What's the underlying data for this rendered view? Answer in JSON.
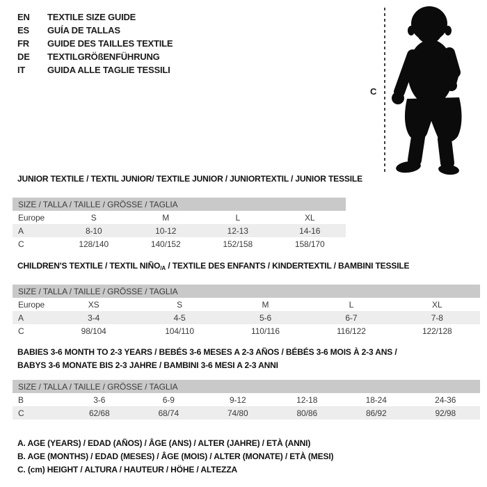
{
  "languages": [
    {
      "code": "EN",
      "label": "TEXTILE SIZE GUIDE"
    },
    {
      "code": "ES",
      "label": "GUÍA DE TALLAS"
    },
    {
      "code": "FR",
      "label": "GUIDE DES TAILLES TEXTILE"
    },
    {
      "code": "DE",
      "label": "TEXTILGRÖßENFÜHRUNG"
    },
    {
      "code": "IT",
      "label": "GUIDA ALLE TAGLIE TESSILI"
    }
  ],
  "figure": {
    "measure_label": "C",
    "description": "toddler-silhouette"
  },
  "sections": [
    {
      "title": "JUNIOR TEXTILE / TEXTIL JUNIOR/ TEXTILE JUNIOR / JUNIORTEXTIL / JUNIOR TESSILE",
      "size_header": "SIZE / TALLA / TAILLE / GRÖSSE / TAGLIA",
      "rows": [
        {
          "label": "Europe",
          "values": [
            "S",
            "M",
            "L",
            "XL"
          ]
        },
        {
          "label": "A",
          "values": [
            "8-10",
            "10-12",
            "12-13",
            "14-16"
          ]
        },
        {
          "label": "C",
          "values": [
            "128/140",
            "140/152",
            "152/158",
            "158/170"
          ]
        }
      ]
    },
    {
      "title_pre": "CHILDREN'S TEXTILE / TEXTIL NIÑO",
      "title_sub": "/A",
      "title_post": " / TEXTILE DES ENFANTS / KINDERTEXTIL / BAMBINI TESSILE",
      "size_header": "SIZE / TALLA / TAILLE / GRÖSSE / TAGLIA",
      "rows": [
        {
          "label": "Europe",
          "values": [
            "XS",
            "S",
            "M",
            "L",
            "XL"
          ]
        },
        {
          "label": "A",
          "values": [
            "3-4",
            "4-5",
            "5-6",
            "6-7",
            "7-8"
          ]
        },
        {
          "label": "C",
          "values": [
            "98/104",
            "104/110",
            "110/116",
            "116/122",
            "122/128"
          ]
        }
      ]
    },
    {
      "title_line1": "BABIES 3-6 MONTH TO 2-3 YEARS / BEBÉS 3-6 MESES A 2-3 AÑOS / BÉBÉS 3-6 MOIS À 2-3 ANS /",
      "title_line2": "BABYS 3-6 MONATE BIS 2-3 JAHRE / BAMBINI 3-6 MESI A 2-3 ANNI",
      "size_header": "SIZE / TALLA / TAILLE / GRÖSSE / TAGLIA",
      "rows": [
        {
          "label": "B",
          "values": [
            "3-6",
            "6-9",
            "9-12",
            "12-18",
            "18-24",
            "24-36"
          ]
        },
        {
          "label": "C",
          "values": [
            "62/68",
            "68/74",
            "74/80",
            "80/86",
            "86/92",
            "92/98"
          ]
        }
      ]
    }
  ],
  "notes": [
    "A. AGE (YEARS) / EDAD (AÑOS) / ÂGE (ANS) / ALTER (JAHRE) / ETÀ (ANNI)",
    "B. AGE (MONTHS) / EDAD (MESES) / ÂGE (MOIS) / ALTER (MONATE) / ETÀ (MESI)",
    "C. (cm) HEIGHT / ALTURA / HAUTEUR / HÖHE / ALTEZZA"
  ],
  "colors": {
    "table_header_bg": "#c9c9c9",
    "row_stripe_bg": "#ededed",
    "silhouette": "#0b0b0b",
    "text": "#1c1c1c"
  }
}
